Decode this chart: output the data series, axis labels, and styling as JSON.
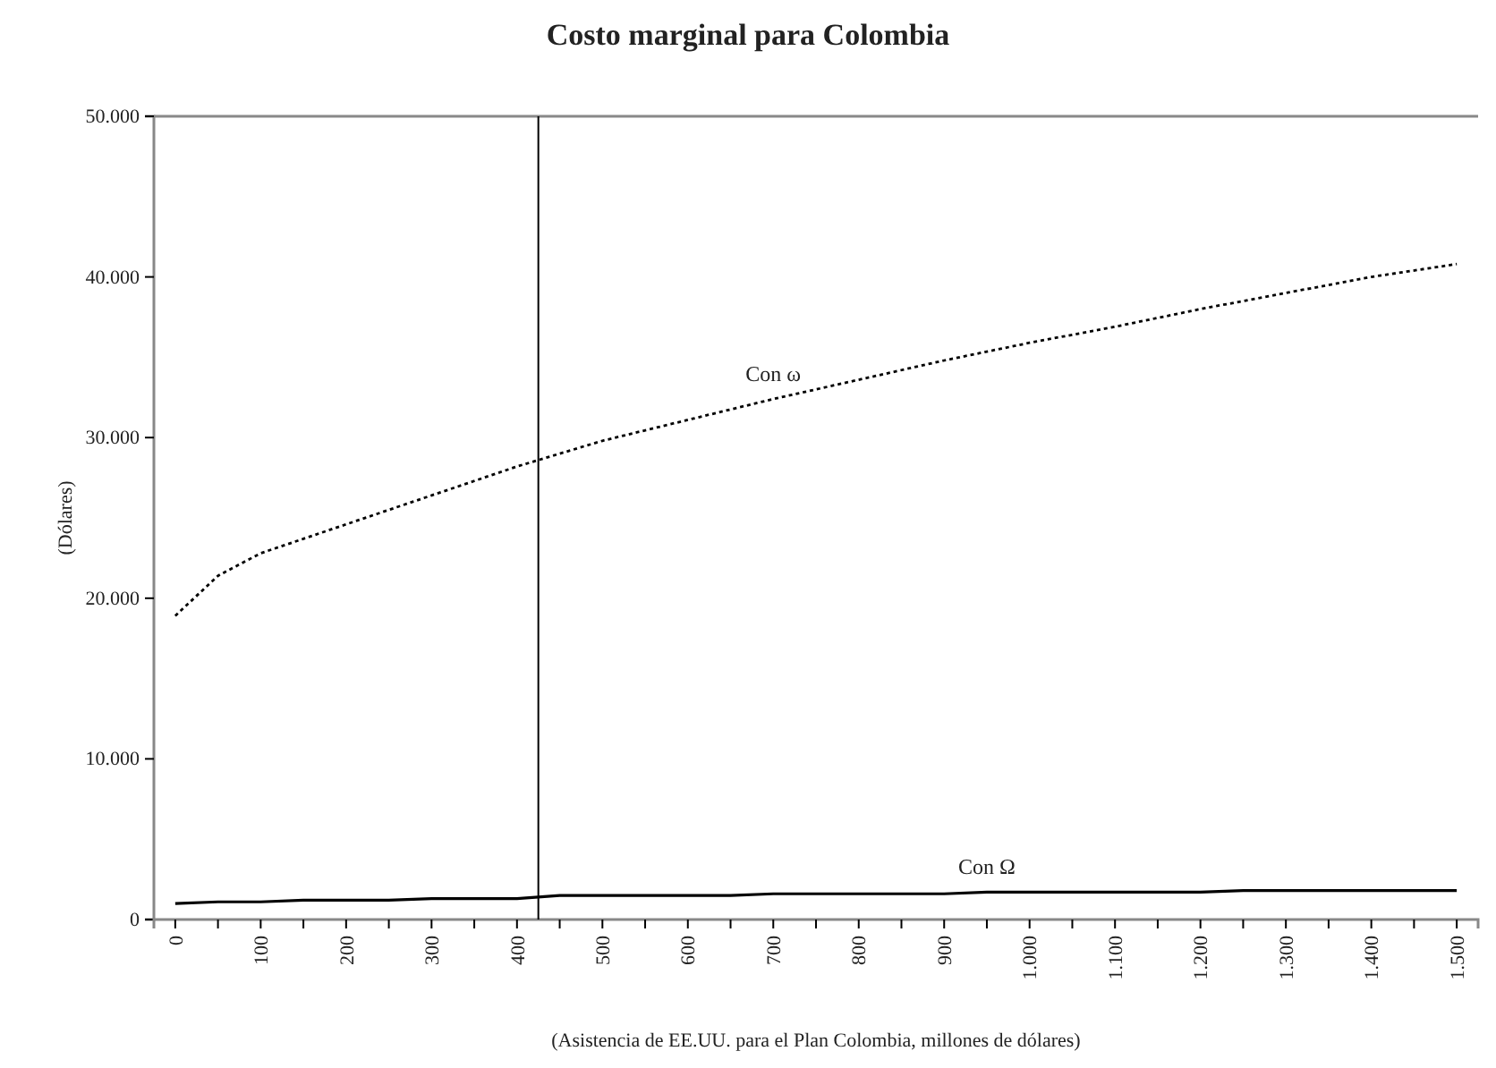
{
  "chart_data": {
    "type": "line",
    "title": "Costo marginal para Colombia",
    "xlabel": "(Asistencia de EE.UU. para el Plan Colombia, millones de dólares)",
    "ylabel": "(Dólares)",
    "xlim": [
      -25,
      1525
    ],
    "xticks": [
      0,
      {
        "value": 50,
        "label": null
      },
      100,
      {
        "value": 150,
        "label": null
      },
      200,
      {
        "value": 250,
        "label": null
      },
      300,
      {
        "value": 350,
        "label": null
      },
      400,
      {
        "value": 450,
        "label": null
      },
      500,
      {
        "value": 550,
        "label": null
      },
      600,
      {
        "value": 650,
        "label": null
      },
      700,
      {
        "value": 750,
        "label": null
      },
      800,
      {
        "value": 850,
        "label": null
      },
      900,
      {
        "value": 950,
        "label": null
      },
      {
        "value": 1000,
        "label": "1.000"
      },
      {
        "value": 1050,
        "label": null
      },
      {
        "value": 1100,
        "label": "1.100"
      },
      {
        "value": 1150,
        "label": null
      },
      {
        "value": 1200,
        "label": "1.200"
      },
      {
        "value": 1250,
        "label": null
      },
      {
        "value": 1300,
        "label": "1.300"
      },
      {
        "value": 1350,
        "label": null
      },
      {
        "value": 1400,
        "label": "1.400"
      },
      {
        "value": 1450,
        "label": null
      },
      {
        "value": 1500,
        "label": "1.500"
      }
    ],
    "ylim": [
      0,
      50000
    ],
    "yticks": [
      0,
      {
        "value": 10000,
        "label": "10.000"
      },
      {
        "value": 20000,
        "label": "20.000"
      },
      {
        "value": 30000,
        "label": "30.000"
      },
      {
        "value": 40000,
        "label": "40.000"
      },
      {
        "value": 50000,
        "label": "50.000"
      }
    ],
    "grid": false,
    "marker": "none",
    "series": [
      {
        "name": "Con ω",
        "color": "#000000",
        "line_style": "dotted",
        "x": [
          0,
          50,
          100,
          150,
          200,
          300,
          400,
          500,
          600,
          700,
          800,
          900,
          1000,
          1100,
          1200,
          1300,
          1400,
          1500
        ],
        "values": [
          18900,
          21400,
          22800,
          23700,
          24600,
          26400,
          28200,
          29800,
          31100,
          32400,
          33600,
          34800,
          35900,
          36900,
          38000,
          39000,
          40000,
          40800
        ]
      },
      {
        "name": "Con Ω",
        "color": "#000000",
        "line_style": "solid",
        "x": [
          0,
          50,
          100,
          150,
          250,
          300,
          400,
          450,
          650,
          700,
          900,
          950,
          1200,
          1250,
          1500
        ],
        "values": [
          1000,
          1100,
          1100,
          1200,
          1200,
          1300,
          1300,
          1500,
          1500,
          1600,
          1600,
          1700,
          1700,
          1800,
          1800
        ]
      }
    ],
    "ref_lines": [
      {
        "axis": "x",
        "value": 425,
        "color": "#000000"
      }
    ]
  }
}
